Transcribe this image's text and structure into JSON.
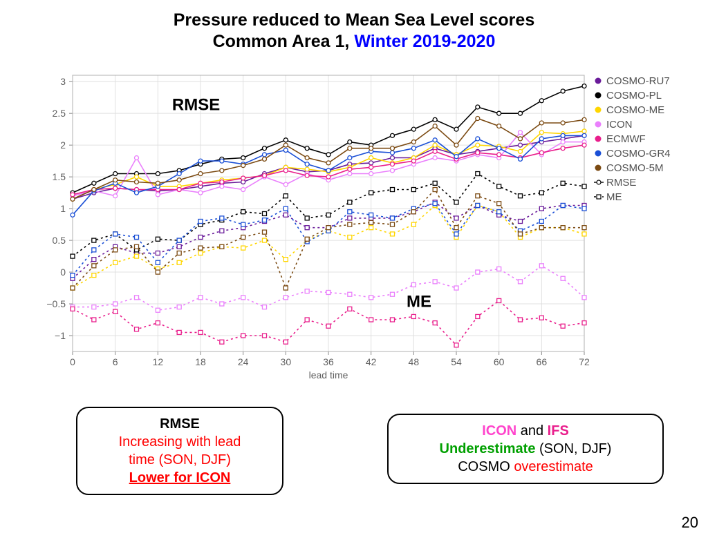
{
  "title": {
    "line1": "Pressure reduced to Mean Sea Level scores",
    "line2_black": "Common Area 1, ",
    "line2_blue": "Winter 2019-2020"
  },
  "chart": {
    "type": "line",
    "xlabel": "lead time",
    "xlim": [
      0,
      72
    ],
    "xtick_step": 6,
    "ylim": [
      -1.25,
      3.1
    ],
    "yticks": [
      -1,
      -0.5,
      0,
      0.5,
      1,
      1.5,
      2,
      2.5,
      3
    ],
    "x": [
      0,
      3,
      6,
      9,
      12,
      15,
      18,
      21,
      24,
      27,
      30,
      33,
      36,
      39,
      42,
      45,
      48,
      51,
      54,
      57,
      60,
      63,
      66,
      69,
      72
    ],
    "grid_color": "#e0e0e0",
    "background_color": "#ffffff",
    "axis_text_color": "#606060",
    "label_rmse": "RMSE",
    "label_me": "ME",
    "series_colors": {
      "COSMO-RU7": "#6a1b9a",
      "COSMO-PL": "#000000",
      "COSMO-ME": "#ffd600",
      "ICON": "#ea80fc",
      "ECMWF": "#e91e8c",
      "COSMO-GR4": "#1a4fd6",
      "COSMO-5M": "#7b4a12"
    },
    "legend": [
      "COSMO-RU7",
      "COSMO-PL",
      "COSMO-ME",
      "ICON",
      "ECMWF",
      "COSMO-GR4",
      "COSMO-5M",
      "RMSE",
      "ME"
    ],
    "rmse_series": {
      "COSMO-RU7": [
        1.15,
        1.25,
        1.32,
        1.3,
        1.28,
        1.3,
        1.35,
        1.4,
        1.42,
        1.55,
        1.65,
        1.58,
        1.6,
        1.7,
        1.72,
        1.8,
        1.8,
        1.95,
        1.85,
        1.9,
        1.95,
        2.0,
        2.05,
        2.1,
        2.15
      ],
      "COSMO-PL": [
        1.25,
        1.4,
        1.55,
        1.55,
        1.55,
        1.6,
        1.7,
        1.78,
        1.8,
        1.95,
        2.08,
        1.95,
        1.85,
        2.05,
        2.0,
        2.15,
        2.25,
        2.4,
        2.25,
        2.6,
        2.5,
        2.5,
        2.7,
        2.85,
        2.93
      ],
      "COSMO-ME": [
        1.15,
        1.3,
        1.38,
        1.5,
        1.35,
        1.35,
        1.4,
        1.45,
        1.48,
        1.52,
        1.65,
        1.62,
        1.58,
        1.65,
        1.8,
        1.72,
        1.8,
        2.0,
        1.85,
        2.0,
        1.98,
        1.9,
        2.2,
        2.18,
        2.22
      ],
      "ICON": [
        1.2,
        1.28,
        1.2,
        1.8,
        1.22,
        1.3,
        1.25,
        1.35,
        1.3,
        1.5,
        1.38,
        1.55,
        1.45,
        1.55,
        1.55,
        1.6,
        1.7,
        1.8,
        1.75,
        1.85,
        1.8,
        2.2,
        1.85,
        2.05,
        2.05
      ],
      "ECMWF": [
        1.22,
        1.3,
        1.32,
        1.3,
        1.3,
        1.3,
        1.4,
        1.42,
        1.48,
        1.52,
        1.6,
        1.52,
        1.5,
        1.62,
        1.65,
        1.7,
        1.75,
        1.9,
        1.78,
        1.88,
        1.85,
        1.8,
        1.88,
        1.95,
        2.0
      ],
      "COSMO-GR4": [
        0.9,
        1.28,
        1.4,
        1.25,
        1.35,
        1.55,
        1.75,
        1.75,
        1.7,
        1.85,
        1.92,
        1.7,
        1.6,
        1.8,
        1.9,
        1.88,
        1.95,
        2.08,
        1.82,
        2.1,
        1.95,
        1.78,
        2.1,
        2.15,
        2.15
      ],
      "COSMO-5M": [
        1.15,
        1.3,
        1.45,
        1.42,
        1.4,
        1.45,
        1.55,
        1.6,
        1.68,
        1.78,
        2.0,
        1.8,
        1.72,
        1.95,
        1.95,
        1.95,
        2.05,
        2.3,
        2.0,
        2.42,
        2.3,
        2.1,
        2.35,
        2.35,
        2.4
      ]
    },
    "me_series": {
      "COSMO-RU7": [
        -0.1,
        0.2,
        0.4,
        0.3,
        0.3,
        0.4,
        0.55,
        0.65,
        0.7,
        0.8,
        0.9,
        0.7,
        0.7,
        0.85,
        0.85,
        0.85,
        0.95,
        1.1,
        0.85,
        1.05,
        0.9,
        0.8,
        1.0,
        1.05,
        1.05
      ],
      "COSMO-PL": [
        0.25,
        0.5,
        0.6,
        0.35,
        0.52,
        0.5,
        0.75,
        0.82,
        0.95,
        0.92,
        1.2,
        0.85,
        0.9,
        1.1,
        1.25,
        1.3,
        1.3,
        1.4,
        1.1,
        1.55,
        1.35,
        1.2,
        1.25,
        1.4,
        1.35
      ],
      "COSMO-ME": [
        -0.25,
        -0.05,
        0.15,
        0.25,
        0.05,
        0.15,
        0.3,
        0.4,
        0.38,
        0.5,
        0.2,
        0.5,
        0.65,
        0.55,
        0.7,
        0.6,
        0.75,
        1.05,
        0.55,
        1.05,
        0.95,
        0.55,
        0.7,
        0.7,
        0.6
      ],
      "ICON": [
        -0.55,
        -0.55,
        -0.5,
        -0.4,
        -0.6,
        -0.55,
        -0.4,
        -0.5,
        -0.4,
        -0.55,
        -0.4,
        -0.3,
        -0.32,
        -0.35,
        -0.4,
        -0.35,
        -0.2,
        -0.15,
        -0.25,
        0.0,
        0.05,
        -0.15,
        0.1,
        -0.1,
        -0.4
      ],
      "ECMWF": [
        -0.58,
        -0.75,
        -0.62,
        -0.9,
        -0.8,
        -0.95,
        -0.95,
        -1.1,
        -1.0,
        -1.0,
        -1.1,
        -0.75,
        -0.85,
        -0.58,
        -0.75,
        -0.75,
        -0.7,
        -0.8,
        -1.15,
        -0.7,
        -0.45,
        -0.75,
        -0.72,
        -0.85,
        -0.8
      ],
      "COSMO-GR4": [
        -0.05,
        0.35,
        0.6,
        0.55,
        0.15,
        0.5,
        0.8,
        0.85,
        0.75,
        0.82,
        1.0,
        0.48,
        0.65,
        0.95,
        0.9,
        0.85,
        1.0,
        1.08,
        0.6,
        1.05,
        0.95,
        0.65,
        0.8,
        1.05,
        1.0
      ],
      "COSMO-5M": [
        -0.25,
        0.1,
        0.35,
        0.4,
        0.0,
        0.3,
        0.38,
        0.4,
        0.55,
        0.63,
        -0.25,
        0.52,
        0.7,
        0.75,
        0.78,
        0.75,
        0.95,
        1.3,
        0.7,
        1.2,
        1.08,
        0.6,
        0.7,
        0.7,
        0.7
      ]
    },
    "line_width_solid": 1.6,
    "line_width_dashed": 1.6,
    "marker_radius": 3
  },
  "notes": {
    "left": {
      "head": "RMSE",
      "l2": "Increasing with lead",
      "l3": "time (SON, DJF)",
      "l4": "Lower for ICON"
    },
    "right": {
      "icon": "ICON",
      "and": " and ",
      "ifs": "IFS",
      "under": "Underestimate",
      "r1tail": "  (SON, DJF)",
      "cosmo": "COSMO ",
      "over": "overestimate"
    }
  },
  "page_number": "20"
}
